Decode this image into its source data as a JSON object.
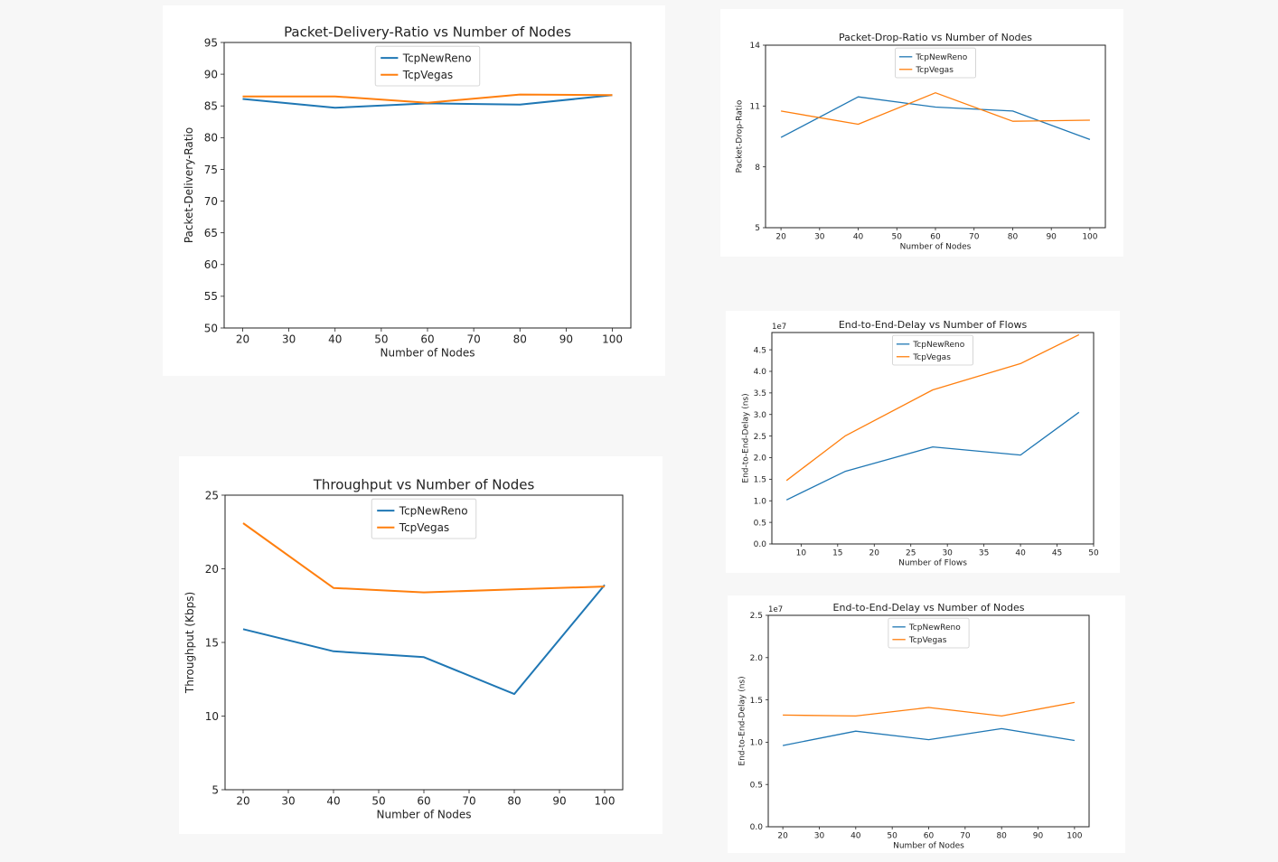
{
  "chart_data": [
    {
      "id": "pdr",
      "type": "line",
      "title": "Packet-Delivery-Ratio vs Number of Nodes",
      "xlabel": "Number of Nodes",
      "ylabel": "Packet-Delivery-Ratio",
      "xlim": [
        16,
        104
      ],
      "ylim": [
        50,
        95
      ],
      "xticks": [
        20,
        30,
        40,
        50,
        60,
        70,
        80,
        90,
        100
      ],
      "yticks": [
        50,
        55,
        60,
        65,
        70,
        75,
        80,
        85,
        90,
        95
      ],
      "sci_label": "",
      "legend": "top-center",
      "series": [
        {
          "name": "TcpNewReno",
          "color": "#1f77b4",
          "x": [
            20,
            40,
            60,
            80,
            100
          ],
          "y": [
            86.1,
            84.7,
            85.4,
            85.2,
            86.7
          ]
        },
        {
          "name": "TcpVegas",
          "color": "#ff7f0e",
          "x": [
            20,
            40,
            60,
            80,
            100
          ],
          "y": [
            86.5,
            86.5,
            85.5,
            86.8,
            86.7
          ]
        }
      ]
    },
    {
      "id": "pdrop",
      "type": "line",
      "title": "Packet-Drop-Ratio vs Number of Nodes",
      "xlabel": "Number of Nodes",
      "ylabel": "Packet-Drop-Ratio",
      "xlim": [
        16,
        104
      ],
      "ylim": [
        5,
        14
      ],
      "xticks": [
        20,
        30,
        40,
        50,
        60,
        70,
        80,
        90,
        100
      ],
      "yticks": [
        5,
        8,
        11,
        14
      ],
      "sci_label": "",
      "legend": "top-center",
      "series": [
        {
          "name": "TcpNewReno",
          "color": "#1f77b4",
          "x": [
            20,
            40,
            60,
            80,
            100
          ],
          "y": [
            9.45,
            11.45,
            10.95,
            10.75,
            9.35
          ]
        },
        {
          "name": "TcpVegas",
          "color": "#ff7f0e",
          "x": [
            20,
            40,
            60,
            80,
            100
          ],
          "y": [
            10.75,
            10.1,
            11.65,
            10.25,
            10.3
          ]
        }
      ]
    },
    {
      "id": "e2e-flows",
      "type": "line",
      "title": "End-to-End-Delay vs Number of Flows",
      "xlabel": "Number of Flows",
      "ylabel": "End-to-End-Delay (ns)",
      "xlim": [
        6,
        50
      ],
      "ylim": [
        0,
        4.9
      ],
      "xticks": [
        10,
        15,
        20,
        25,
        30,
        35,
        40,
        45,
        50
      ],
      "yticks": [
        0.0,
        0.5,
        1.0,
        1.5,
        2.0,
        2.5,
        3.0,
        3.5,
        4.0,
        4.5
      ],
      "tick_decimals": 1,
      "sci_label": "1e7",
      "legend": "top-center",
      "series": [
        {
          "name": "TcpNewReno",
          "color": "#1f77b4",
          "x": [
            8,
            16,
            28,
            40,
            48
          ],
          "y": [
            1.02,
            1.68,
            2.25,
            2.06,
            3.05
          ]
        },
        {
          "name": "TcpVegas",
          "color": "#ff7f0e",
          "x": [
            8,
            16,
            28,
            40,
            48
          ],
          "y": [
            1.47,
            2.5,
            3.57,
            4.18,
            4.85
          ]
        }
      ]
    },
    {
      "id": "throughput",
      "type": "line",
      "title": "Throughput vs Number of Nodes",
      "xlabel": "Number of Nodes",
      "ylabel": "Throughput (Kbps)",
      "xlim": [
        16,
        104
      ],
      "ylim": [
        5,
        25
      ],
      "xticks": [
        20,
        30,
        40,
        50,
        60,
        70,
        80,
        90,
        100
      ],
      "yticks": [
        5,
        10,
        15,
        20,
        25
      ],
      "sci_label": "",
      "legend": "top-center",
      "series": [
        {
          "name": "TcpNewReno",
          "color": "#1f77b4",
          "x": [
            20,
            40,
            60,
            80,
            100
          ],
          "y": [
            15.9,
            14.4,
            14.0,
            11.5,
            18.9
          ]
        },
        {
          "name": "TcpVegas",
          "color": "#ff7f0e",
          "x": [
            20,
            40,
            60,
            80,
            100
          ],
          "y": [
            23.1,
            18.7,
            18.4,
            18.6,
            18.8
          ]
        }
      ]
    },
    {
      "id": "e2e-nodes",
      "type": "line",
      "title": "End-to-End-Delay vs Number of Nodes",
      "xlabel": "Number of Nodes",
      "ylabel": "End-to-End-Delay (ns)",
      "xlim": [
        16,
        104
      ],
      "ylim": [
        0,
        2.5
      ],
      "xticks": [
        20,
        30,
        40,
        50,
        60,
        70,
        80,
        90,
        100
      ],
      "yticks": [
        0.0,
        0.5,
        1.0,
        1.5,
        2.0,
        2.5
      ],
      "tick_decimals": 1,
      "sci_label": "1e7",
      "legend": "top-center",
      "series": [
        {
          "name": "TcpNewReno",
          "color": "#1f77b4",
          "x": [
            20,
            40,
            60,
            80,
            100
          ],
          "y": [
            0.96,
            1.13,
            1.03,
            1.16,
            1.02
          ]
        },
        {
          "name": "TcpVegas",
          "color": "#ff7f0e",
          "x": [
            20,
            40,
            60,
            80,
            100
          ],
          "y": [
            1.32,
            1.31,
            1.41,
            1.31,
            1.47
          ]
        }
      ]
    }
  ]
}
